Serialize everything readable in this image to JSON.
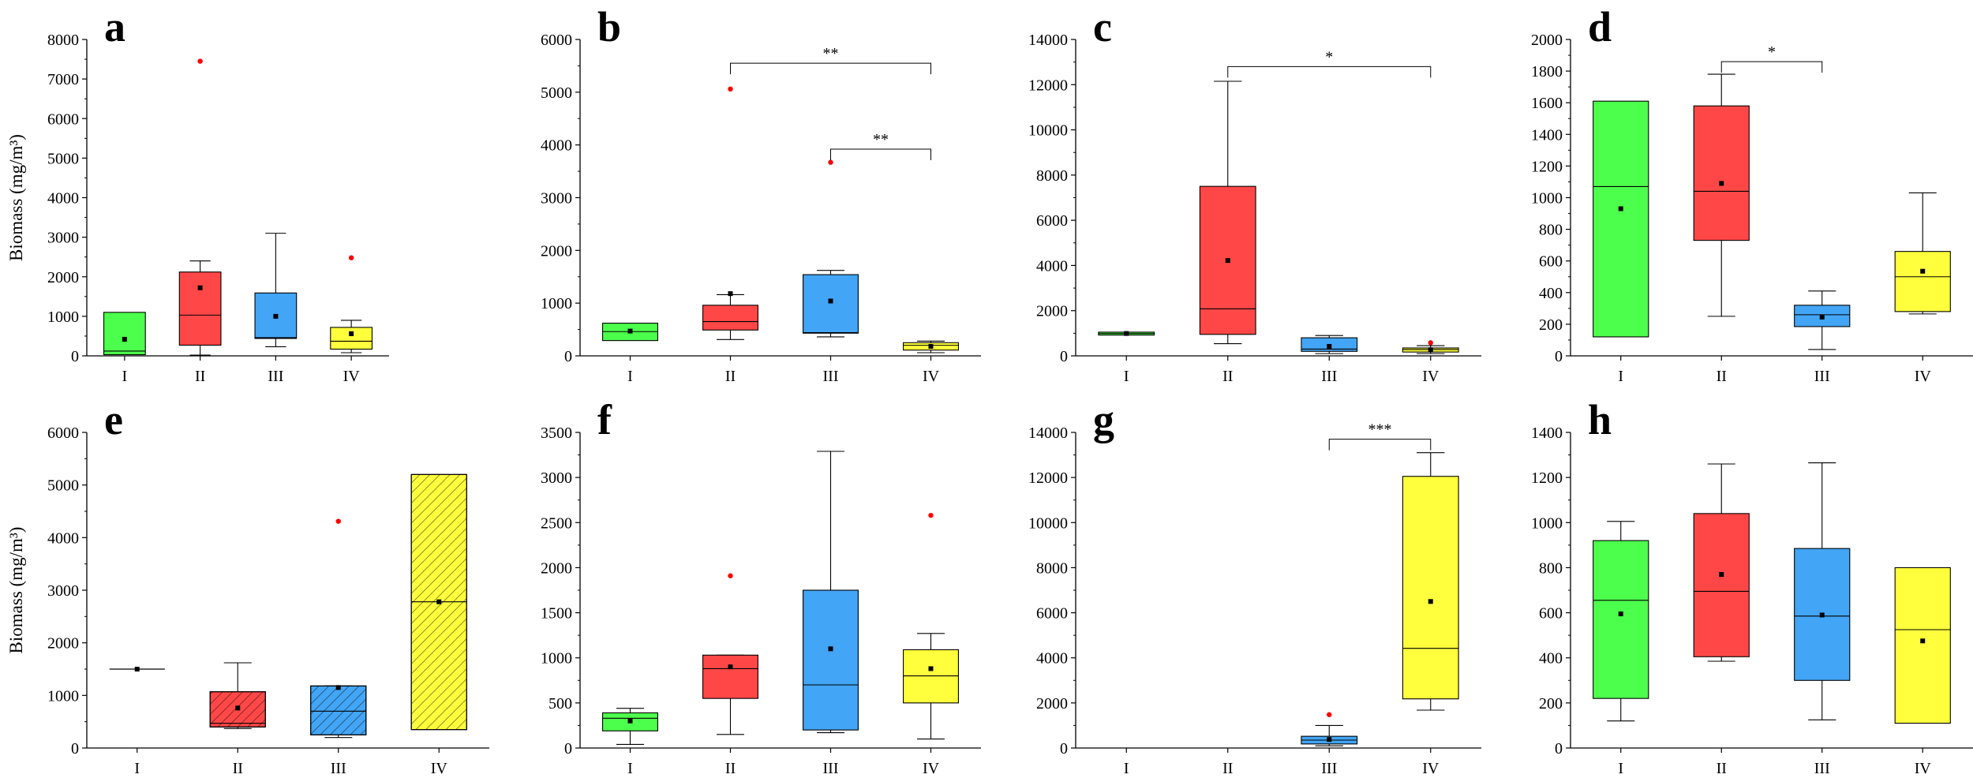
{
  "chart_data": [
    {
      "panel": "a",
      "type": "box",
      "ylabel": "Biomass (mg/m³)",
      "ylim": [
        0,
        8000
      ],
      "yticks": [
        0,
        1000,
        2000,
        3000,
        4000,
        5000,
        6000,
        7000,
        8000
      ],
      "categories": [
        "I",
        "II",
        "III",
        "IV"
      ],
      "boxes": [
        {
          "cat": "I",
          "color": "#4dff4d",
          "q1": 30,
          "median": 120,
          "q3": 1100,
          "mean": 420,
          "whisker_low": null,
          "whisker_high": null,
          "outliers": []
        },
        {
          "cat": "II",
          "color": "#ff4747",
          "q1": 270,
          "median": 1030,
          "q3": 2120,
          "mean": 1720,
          "whisker_low": 20,
          "whisker_high": 2400,
          "outliers": [
            7450
          ]
        },
        {
          "cat": "III",
          "color": "#42a5f5",
          "q1": 440,
          "median": 460,
          "q3": 1590,
          "mean": 1000,
          "whisker_low": 230,
          "whisker_high": 3100,
          "outliers": []
        },
        {
          "cat": "IV",
          "color": "#ffff3d",
          "q1": 170,
          "median": 370,
          "q3": 720,
          "mean": 560,
          "whisker_low": 80,
          "whisker_high": 900,
          "outliers": [
            2480
          ]
        }
      ],
      "significance": []
    },
    {
      "panel": "b",
      "type": "box",
      "ylabel": "",
      "ylim": [
        0,
        6000
      ],
      "yticks": [
        0,
        1000,
        2000,
        3000,
        4000,
        5000,
        6000
      ],
      "categories": [
        "I",
        "II",
        "III",
        "IV"
      ],
      "boxes": [
        {
          "cat": "I",
          "color": "#4dff4d",
          "q1": 290,
          "median": 460,
          "q3": 620,
          "mean": 470,
          "whisker_low": null,
          "whisker_high": null,
          "outliers": []
        },
        {
          "cat": "II",
          "color": "#ff4747",
          "q1": 490,
          "median": 650,
          "q3": 960,
          "mean": 1180,
          "whisker_low": 310,
          "whisker_high": 1160,
          "outliers": [
            5060
          ]
        },
        {
          "cat": "III",
          "color": "#42a5f5",
          "q1": 430,
          "median": 440,
          "q3": 1540,
          "mean": 1040,
          "whisker_low": 360,
          "whisker_high": 1620,
          "outliers": [
            3670
          ]
        },
        {
          "cat": "IV",
          "color": "#ffff3d",
          "q1": 110,
          "median": 200,
          "q3": 250,
          "mean": 180,
          "whisker_low": 60,
          "whisker_high": 280,
          "outliers": []
        }
      ],
      "significance": [
        {
          "from": "II",
          "to": "IV",
          "y": 5550,
          "label": "**"
        },
        {
          "from": "III",
          "to": "IV",
          "y": 3920,
          "label": "**"
        }
      ]
    },
    {
      "panel": "c",
      "type": "box",
      "ylabel": "",
      "ylim": [
        0,
        14000
      ],
      "yticks": [
        0,
        2000,
        4000,
        6000,
        8000,
        10000,
        12000,
        14000
      ],
      "categories": [
        "I",
        "II",
        "III",
        "IV"
      ],
      "boxes": [
        {
          "cat": "I",
          "color": "#4dff4d",
          "q1": 920,
          "median": 990,
          "q3": 1050,
          "mean": 990,
          "whisker_low": null,
          "whisker_high": null,
          "outliers": []
        },
        {
          "cat": "II",
          "color": "#ff4747",
          "q1": 950,
          "median": 2080,
          "q3": 7500,
          "mean": 4220,
          "whisker_low": 540,
          "whisker_high": 12150,
          "outliers": []
        },
        {
          "cat": "III",
          "color": "#42a5f5",
          "q1": 200,
          "median": 300,
          "q3": 800,
          "mean": 420,
          "whisker_low": 100,
          "whisker_high": 900,
          "outliers": []
        },
        {
          "cat": "IV",
          "color": "#ffff3d",
          "q1": 170,
          "median": 280,
          "q3": 350,
          "mean": 270,
          "whisker_low": 100,
          "whisker_high": 450,
          "outliers": [
            580
          ]
        }
      ],
      "significance": [
        {
          "from": "II",
          "to": "IV",
          "y": 12800,
          "label": "*"
        }
      ]
    },
    {
      "panel": "d",
      "type": "box",
      "ylabel": "",
      "ylim": [
        0,
        2000
      ],
      "yticks": [
        0,
        200,
        400,
        600,
        800,
        1000,
        1200,
        1400,
        1600,
        1800,
        2000
      ],
      "categories": [
        "I",
        "II",
        "III",
        "IV"
      ],
      "boxes": [
        {
          "cat": "I",
          "color": "#4dff4d",
          "q1": 120,
          "median": 1070,
          "q3": 1610,
          "mean": 930,
          "whisker_low": null,
          "whisker_high": null,
          "outliers": []
        },
        {
          "cat": "II",
          "color": "#ff4747",
          "q1": 730,
          "median": 1040,
          "q3": 1580,
          "mean": 1090,
          "whisker_low": 250,
          "whisker_high": 1780,
          "outliers": []
        },
        {
          "cat": "III",
          "color": "#42a5f5",
          "q1": 185,
          "median": 260,
          "q3": 320,
          "mean": 245,
          "whisker_low": 40,
          "whisker_high": 410,
          "outliers": []
        },
        {
          "cat": "IV",
          "color": "#ffff3d",
          "q1": 280,
          "median": 500,
          "q3": 660,
          "mean": 535,
          "whisker_low": 265,
          "whisker_high": 1030,
          "outliers": []
        }
      ],
      "significance": [
        {
          "from": "II",
          "to": "III",
          "y": 1860,
          "label": "*"
        }
      ]
    },
    {
      "panel": "e",
      "type": "box",
      "ylabel": "Biomass (mg/m³)",
      "ylim": [
        0,
        6000
      ],
      "yticks": [
        0,
        1000,
        2000,
        3000,
        4000,
        5000,
        6000
      ],
      "categories": [
        "I",
        "II",
        "III",
        "IV"
      ],
      "boxes": [
        {
          "cat": "I",
          "color": "#4dff4d",
          "q1": 1500,
          "median": 1500,
          "q3": 1500,
          "mean": 1500,
          "whisker_low": null,
          "whisker_high": null,
          "outliers": [],
          "line_only": true
        },
        {
          "cat": "II",
          "color": "#ff4747",
          "hatched": true,
          "q1": 400,
          "median": 470,
          "q3": 1070,
          "mean": 760,
          "whisker_low": 370,
          "whisker_high": 1620,
          "outliers": []
        },
        {
          "cat": "III",
          "color": "#42a5f5",
          "hatched": true,
          "q1": 250,
          "median": 700,
          "q3": 1180,
          "mean": 1150,
          "whisker_low": 200,
          "whisker_high": 1180,
          "outliers": [
            4310
          ]
        },
        {
          "cat": "IV",
          "color": "#ffff3d",
          "hatched": true,
          "q1": 350,
          "median": 2780,
          "q3": 5200,
          "mean": 2780,
          "whisker_low": null,
          "whisker_high": null,
          "outliers": []
        }
      ],
      "significance": []
    },
    {
      "panel": "f",
      "type": "box",
      "ylabel": "",
      "ylim": [
        0,
        3500
      ],
      "yticks": [
        0,
        500,
        1000,
        1500,
        2000,
        2500,
        3000,
        3500
      ],
      "categories": [
        "I",
        "II",
        "III",
        "IV"
      ],
      "boxes": [
        {
          "cat": "I",
          "color": "#4dff4d",
          "q1": 190,
          "median": 330,
          "q3": 390,
          "mean": 300,
          "whisker_low": 40,
          "whisker_high": 440,
          "outliers": []
        },
        {
          "cat": "II",
          "color": "#ff4747",
          "q1": 550,
          "median": 880,
          "q3": 1030,
          "mean": 900,
          "whisker_low": 150,
          "whisker_high": 1030,
          "outliers": [
            1910
          ]
        },
        {
          "cat": "III",
          "color": "#42a5f5",
          "q1": 200,
          "median": 700,
          "q3": 1750,
          "mean": 1100,
          "whisker_low": 170,
          "whisker_high": 3290,
          "outliers": []
        },
        {
          "cat": "IV",
          "color": "#ffff3d",
          "q1": 500,
          "median": 800,
          "q3": 1090,
          "mean": 880,
          "whisker_low": 100,
          "whisker_high": 1270,
          "outliers": [
            2580
          ]
        }
      ],
      "significance": []
    },
    {
      "panel": "g",
      "type": "box",
      "ylabel": "",
      "ylim": [
        0,
        14000
      ],
      "yticks": [
        0,
        2000,
        4000,
        6000,
        8000,
        10000,
        12000,
        14000
      ],
      "categories": [
        "I",
        "II",
        "III",
        "IV"
      ],
      "boxes": [
        {
          "cat": "III",
          "color": "#42a5f5",
          "q1": 180,
          "median": 350,
          "q3": 520,
          "mean": 380,
          "whisker_low": 100,
          "whisker_high": 1000,
          "outliers": [
            1480
          ]
        },
        {
          "cat": "IV",
          "color": "#ffff3d",
          "q1": 2180,
          "median": 4420,
          "q3": 12050,
          "mean": 6500,
          "whisker_low": 1680,
          "whisker_high": 13100,
          "outliers": []
        }
      ],
      "significance": [
        {
          "from": "III",
          "to": "IV",
          "y": 13700,
          "label": "***"
        }
      ]
    },
    {
      "panel": "h",
      "type": "box",
      "ylabel": "",
      "ylim": [
        0,
        1400
      ],
      "yticks": [
        0,
        200,
        400,
        600,
        800,
        1000,
        1200,
        1400
      ],
      "categories": [
        "I",
        "II",
        "III",
        "IV"
      ],
      "boxes": [
        {
          "cat": "I",
          "color": "#4dff4d",
          "q1": 220,
          "median": 655,
          "q3": 920,
          "mean": 595,
          "whisker_low": 120,
          "whisker_high": 1005,
          "outliers": []
        },
        {
          "cat": "II",
          "color": "#ff4747",
          "q1": 405,
          "median": 695,
          "q3": 1040,
          "mean": 770,
          "whisker_low": 385,
          "whisker_high": 1260,
          "outliers": []
        },
        {
          "cat": "III",
          "color": "#42a5f5",
          "q1": 300,
          "median": 585,
          "q3": 885,
          "mean": 590,
          "whisker_low": 125,
          "whisker_high": 1265,
          "outliers": []
        },
        {
          "cat": "IV",
          "color": "#ffff3d",
          "q1": 110,
          "median": 525,
          "q3": 800,
          "mean": 475,
          "whisker_low": null,
          "whisker_high": null,
          "outliers": []
        }
      ],
      "significance": []
    }
  ]
}
